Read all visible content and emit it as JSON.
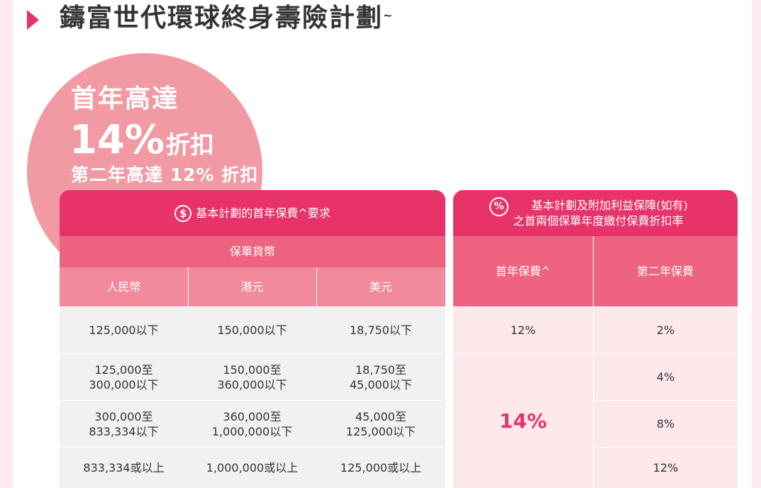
{
  "page": {
    "title": "鑄富世代環球終身壽險計劃",
    "title_mark": "~"
  },
  "promo": {
    "line1": "首年高達",
    "big_value": "14%",
    "big_suffix": "折扣",
    "line3": "第二年高達 12% 折扣"
  },
  "left_table": {
    "header": "基本計劃的首年保費^要求",
    "header_icon": "dollar-icon",
    "currency_header": "保單貨幣",
    "columns": [
      "人民幣",
      "港元",
      "美元"
    ],
    "rows": [
      [
        "125,000以下",
        "150,000以下",
        "18,750以下"
      ],
      [
        "125,000至\n300,000以下",
        "150,000至\n360,000以下",
        "18,750至\n45,000以下"
      ],
      [
        "300,000至\n833,334以下",
        "360,000至\n1,000,000以下",
        "45,000至\n125,000以下"
      ],
      [
        "833,334或以上",
        "1,000,000或以上",
        "125,000或以上"
      ]
    ]
  },
  "right_table": {
    "header_line1": "基本計劃及附加利益保障(如有)",
    "header_line2": "之首兩個保單年度繳付保費折扣率",
    "header_icon": "percent-icon",
    "icon_text": "%",
    "columns": [
      "首年保費^",
      "第二年保費"
    ],
    "first_year": [
      "12%",
      "14%"
    ],
    "second_year": [
      "2%",
      "4%",
      "8%",
      "12%"
    ]
  },
  "colors": {
    "accent": "#e8336a",
    "header_mid": "#ee6480",
    "header_light": "#f08a9c",
    "circle": "#f29aa4",
    "row_gray": "#f1f1f1",
    "row_pink": "#fde8ec"
  }
}
